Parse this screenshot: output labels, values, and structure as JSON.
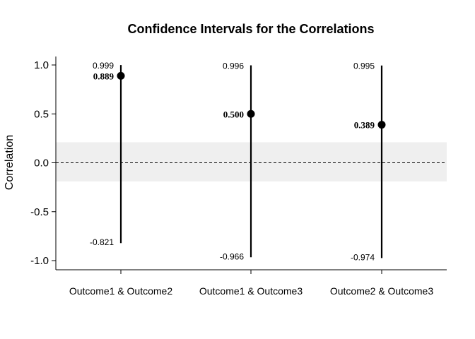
{
  "chart_data": {
    "type": "interval",
    "title": "Confidence Intervals for the Correlations",
    "ylabel": "Correlation",
    "xlabel": "",
    "ylim": [
      -1.1,
      1.1
    ],
    "yticks": [
      1.0,
      0.5,
      0.0,
      -0.5,
      -1.0
    ],
    "ytick_labels": [
      "1.0",
      "0.5",
      "0.0",
      "-0.5",
      "-1.0"
    ],
    "categories": [
      "Outcome1 & Outcome2",
      "Outcome1 & Outcome3",
      "Outcome2 & Outcome3"
    ],
    "estimates": [
      0.889,
      0.5,
      0.389
    ],
    "estimate_labels": [
      "0.889",
      "0.500",
      "0.389"
    ],
    "lower": [
      -0.821,
      -0.966,
      -0.974
    ],
    "lower_labels": [
      "-0.821",
      "-0.966",
      "-0.974"
    ],
    "upper": [
      0.999,
      0.996,
      0.995
    ],
    "upper_labels": [
      "0.999",
      "0.996",
      "0.995"
    ],
    "reference_line": 0.0,
    "shaded_band": [
      -0.19,
      0.21
    ],
    "colors": {
      "point": "#000000",
      "interval": "#000000",
      "band": "#efefef",
      "reference": "#000000"
    }
  }
}
